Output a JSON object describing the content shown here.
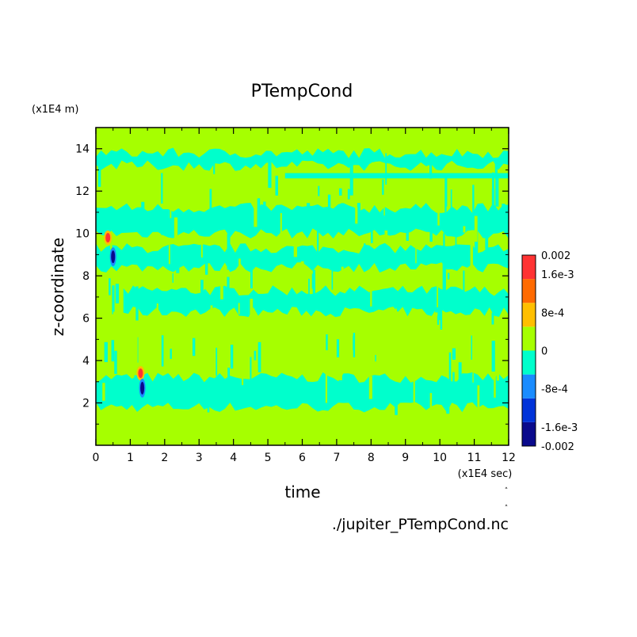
{
  "chart_data": {
    "type": "heatmap",
    "title": "PTempCond",
    "xlabel": "time",
    "ylabel": "z-coordinate",
    "x_unit_label": "(x1E4 sec)",
    "y_unit_label": "(x1E4 m)",
    "xlim": [
      0,
      12
    ],
    "ylim": [
      0,
      15
    ],
    "x_ticks": [
      "0",
      "1",
      "2",
      "3",
      "4",
      "5",
      "6",
      "7",
      "8",
      "9",
      "10",
      "11",
      "12"
    ],
    "y_ticks": [
      "2",
      "4",
      "6",
      "8",
      "10",
      "12",
      "14"
    ],
    "colorbar": {
      "levels": [
        "0.002",
        "1.6e-3",
        "8e-4",
        "0",
        "-8e-4",
        "-1.6e-3",
        "-0.002"
      ],
      "range": [
        -0.002,
        0.002
      ],
      "colors": [
        "#0a0a8c",
        "#0033d9",
        "#1a8cff",
        "#00ffcc",
        "#a6ff00",
        "#ffbf00",
        "#ff6a00",
        "#ff3333"
      ]
    },
    "field_description_levels": {
      "background": 0,
      "cyan_bands_z": [
        [
          1.8,
          3.2
        ],
        [
          6.3,
          7.3
        ],
        [
          8.4,
          9.3
        ],
        [
          10.0,
          11.2
        ],
        [
          13.2,
          13.8
        ]
      ],
      "hotspots": [
        {
          "x": 0.35,
          "z": 9.8,
          "value": 0.002
        },
        {
          "x": 1.3,
          "z": 3.4,
          "value": 0.0012
        }
      ],
      "coldspots": [
        {
          "x": 0.5,
          "z": 8.9,
          "value": -0.002
        },
        {
          "x": 1.35,
          "z": 2.7,
          "value": -0.0016
        }
      ]
    },
    "footer": "./jupiter_PTempCond.nc"
  }
}
